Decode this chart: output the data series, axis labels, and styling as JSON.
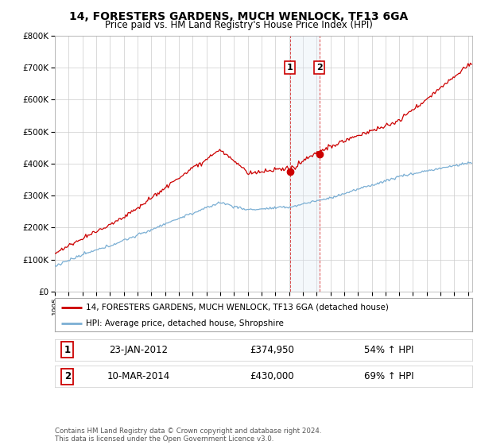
{
  "title": "14, FORESTERS GARDENS, MUCH WENLOCK, TF13 6GA",
  "subtitle": "Price paid vs. HM Land Registry's House Price Index (HPI)",
  "legend_line1": "14, FORESTERS GARDENS, MUCH WENLOCK, TF13 6GA (detached house)",
  "legend_line2": "HPI: Average price, detached house, Shropshire",
  "transaction1_date": "23-JAN-2012",
  "transaction1_price": "£374,950",
  "transaction1_hpi": "54% ↑ HPI",
  "transaction1_year": 2012.06,
  "transaction1_value": 374950,
  "transaction2_date": "10-MAR-2014",
  "transaction2_price": "£430,000",
  "transaction2_hpi": "69% ↑ HPI",
  "transaction2_year": 2014.2,
  "transaction2_value": 430000,
  "footer": "Contains HM Land Registry data © Crown copyright and database right 2024.\nThis data is licensed under the Open Government Licence v3.0.",
  "ylim": [
    0,
    800000
  ],
  "yticks": [
    0,
    100000,
    200000,
    300000,
    400000,
    500000,
    600000,
    700000,
    800000
  ],
  "red_color": "#cc0000",
  "blue_color": "#7bafd4",
  "highlight_fill": "#dde8f5",
  "xlim_start": 1995,
  "xlim_end": 2025.3
}
